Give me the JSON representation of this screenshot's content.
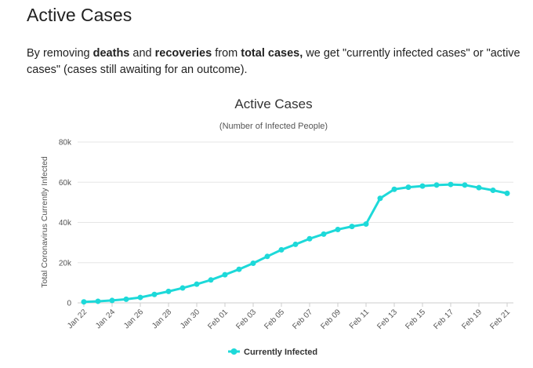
{
  "page": {
    "heading": "Active Cases",
    "intro": {
      "part1": "By removing ",
      "bold1": "deaths",
      "part2": " and ",
      "bold2": "recoveries",
      "part3": " from ",
      "bold3": "total cases,",
      "part4": " we get \"currently infected cases\" or \"active cases\" (cases still awaiting for an outcome)."
    }
  },
  "colors": {
    "series": "#1DD9D9",
    "grid": "#e6e6e6",
    "axis": "#cccccc"
  },
  "chart_data": {
    "type": "line",
    "title": "Active Cases",
    "subtitle": "(Number of Infected People)",
    "ylabel": "Total Coronavirus Currently Infected",
    "xlabel": "",
    "ylim": [
      0,
      80000
    ],
    "y_ticks": [
      {
        "value": 0,
        "label": "0"
      },
      {
        "value": 20000,
        "label": "20k"
      },
      {
        "value": 40000,
        "label": "40k"
      },
      {
        "value": 60000,
        "label": "60k"
      },
      {
        "value": 80000,
        "label": "80k"
      }
    ],
    "grid": true,
    "legend_position": "bottom-center",
    "categories": [
      "Jan 22",
      "Jan 23",
      "Jan 24",
      "Jan 25",
      "Jan 26",
      "Jan 27",
      "Jan 28",
      "Jan 29",
      "Jan 30",
      "Jan 31",
      "Feb 01",
      "Feb 02",
      "Feb 03",
      "Feb 04",
      "Feb 05",
      "Feb 06",
      "Feb 07",
      "Feb 08",
      "Feb 09",
      "Feb 10",
      "Feb 11",
      "Feb 12",
      "Feb 13",
      "Feb 14",
      "Feb 15",
      "Feb 16",
      "Feb 17",
      "Feb 18",
      "Feb 19",
      "Feb 20",
      "Feb 21"
    ],
    "x_tick_labels": [
      "Jan 22",
      "Jan 24",
      "Jan 26",
      "Jan 28",
      "Jan 30",
      "Feb 01",
      "Feb 03",
      "Feb 05",
      "Feb 07",
      "Feb 09",
      "Feb 11",
      "Feb 13",
      "Feb 15",
      "Feb 17",
      "Feb 19",
      "Feb 21"
    ],
    "series": [
      {
        "name": "Currently Infected",
        "values": [
          510,
          800,
          1200,
          1800,
          2700,
          4200,
          5700,
          7400,
          9300,
          11400,
          14000,
          16700,
          19700,
          23100,
          26400,
          29100,
          31900,
          34200,
          36500,
          38000,
          39200,
          52000,
          56500,
          57500,
          58100,
          58600,
          58900,
          58600,
          57300,
          56000,
          54500
        ]
      }
    ]
  }
}
